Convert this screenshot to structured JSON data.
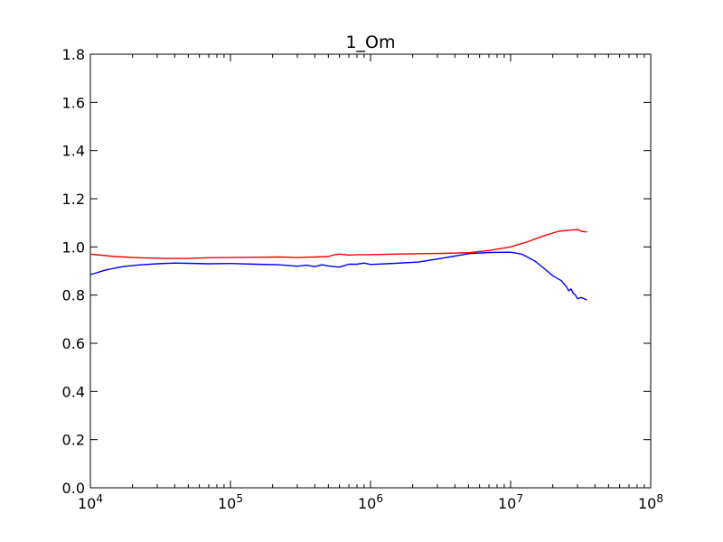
{
  "chart_data": {
    "type": "line",
    "title": "1_Om",
    "xlabel": "",
    "ylabel": "",
    "xscale": "log",
    "xlim": [
      10000,
      100000000
    ],
    "ylim": [
      0.0,
      1.8
    ],
    "grid": false,
    "legend": "none",
    "x_ticks": [
      {
        "value": 10000,
        "base": "10",
        "exp": "4"
      },
      {
        "value": 100000,
        "base": "10",
        "exp": "5"
      },
      {
        "value": 1000000,
        "base": "10",
        "exp": "6"
      },
      {
        "value": 10000000,
        "base": "10",
        "exp": "7"
      },
      {
        "value": 100000000,
        "base": "10",
        "exp": "8"
      }
    ],
    "y_ticks": [
      {
        "value": 0.0,
        "label": "0.0"
      },
      {
        "value": 0.2,
        "label": "0.2"
      },
      {
        "value": 0.4,
        "label": "0.4"
      },
      {
        "value": 0.6,
        "label": "0.6"
      },
      {
        "value": 0.8,
        "label": "0.8"
      },
      {
        "value": 1.0,
        "label": "1.0"
      },
      {
        "value": 1.2,
        "label": "1.2"
      },
      {
        "value": 1.4,
        "label": "1.4"
      },
      {
        "value": 1.6,
        "label": "1.6"
      },
      {
        "value": 1.8,
        "label": "1.8"
      }
    ],
    "series": [
      {
        "color": "#ff0000",
        "x": [
          10000,
          15000,
          22000,
          33000,
          50000,
          70000,
          100000,
          150000,
          220000,
          300000,
          400000,
          500000,
          550000,
          600000,
          700000,
          800000,
          1000000,
          1500000,
          2200000,
          3300000,
          5000000,
          7000000,
          10000000,
          13000000,
          17000000,
          22000000,
          27000000,
          30000000,
          32000000,
          35000000
        ],
        "values": [
          0.97,
          0.96,
          0.955,
          0.952,
          0.952,
          0.955,
          0.956,
          0.957,
          0.958,
          0.956,
          0.958,
          0.96,
          0.967,
          0.97,
          0.966,
          0.968,
          0.968,
          0.97,
          0.972,
          0.973,
          0.976,
          0.985,
          1.0,
          1.02,
          1.045,
          1.065,
          1.07,
          1.072,
          1.065,
          1.062
        ]
      },
      {
        "color": "#0000ff",
        "x": [
          10000,
          13000,
          17000,
          22000,
          30000,
          40000,
          50000,
          70000,
          100000,
          150000,
          220000,
          300000,
          350000,
          400000,
          450000,
          500000,
          600000,
          700000,
          800000,
          900000,
          1000000,
          1500000,
          2200000,
          3000000,
          4000000,
          5000000,
          7000000,
          10000000,
          12000000,
          15000000,
          17000000,
          20000000,
          23000000,
          25000000,
          26000000,
          27000000,
          28000000,
          29000000,
          30000000,
          32000000,
          35000000
        ],
        "values": [
          0.885,
          0.905,
          0.918,
          0.925,
          0.93,
          0.933,
          0.932,
          0.93,
          0.931,
          0.928,
          0.926,
          0.92,
          0.924,
          0.918,
          0.926,
          0.921,
          0.916,
          0.928,
          0.928,
          0.933,
          0.927,
          0.932,
          0.937,
          0.95,
          0.962,
          0.972,
          0.977,
          0.978,
          0.97,
          0.94,
          0.915,
          0.88,
          0.86,
          0.835,
          0.818,
          0.825,
          0.808,
          0.8,
          0.785,
          0.79,
          0.78
        ]
      }
    ]
  }
}
